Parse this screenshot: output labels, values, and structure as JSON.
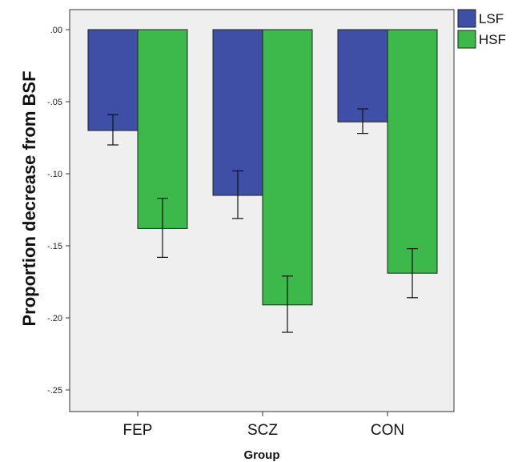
{
  "chart_data": {
    "type": "bar",
    "categories": [
      "FEP",
      "SCZ",
      "CON"
    ],
    "series": [
      {
        "name": "LSF",
        "color": "#3f4fa6",
        "values": [
          -0.07,
          -0.115,
          -0.064
        ],
        "error_low": [
          -0.08,
          -0.131,
          -0.072
        ],
        "error_high": [
          -0.059,
          -0.098,
          -0.055
        ]
      },
      {
        "name": "HSF",
        "color": "#3db84a",
        "values": [
          -0.138,
          -0.191,
          -0.169
        ],
        "error_low": [
          -0.158,
          -0.21,
          -0.186
        ],
        "error_high": [
          -0.117,
          -0.171,
          -0.152
        ]
      }
    ],
    "xlabel": "Group",
    "ylabel": "Proportion decrease from BSF",
    "ylim": [
      -0.265,
      0.015
    ],
    "yticks": [
      0,
      -0.05,
      -0.1,
      -0.15,
      -0.2,
      -0.25
    ],
    "ytick_labels": [
      ".00",
      "-.05",
      "-.10",
      "-.15",
      "-.20",
      "-.25"
    ],
    "legend_position": "top-right",
    "plot_background": "#efefef",
    "grid": false
  }
}
